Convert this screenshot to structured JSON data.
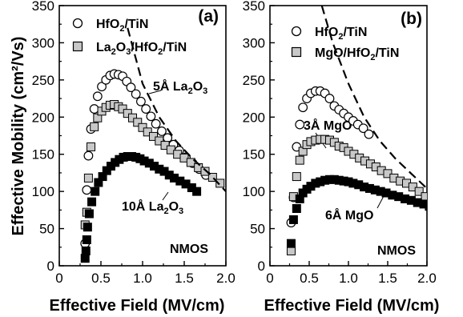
{
  "figure": {
    "ylabel": "Effective Mobility (cm²/Vs)",
    "xlabel": "Effective Field (MV/cm)"
  },
  "chart_data": [
    {
      "type": "scatter",
      "panel": "(a)",
      "xlabel": "Effective Field (MV/cm)",
      "ylabel": "Effective Mobility (cm²/Vs)",
      "xlim": [
        0,
        2.0
      ],
      "ylim": [
        0,
        350
      ],
      "xticks": [
        "0",
        "0.5",
        "1.0",
        "1.5",
        "2.0"
      ],
      "yticks": [
        "0",
        "50",
        "100",
        "150",
        "200",
        "250",
        "300",
        "350"
      ],
      "grid": false,
      "legend_position": "top-left",
      "series": [
        {
          "name": "HfO2/TiN",
          "marker": "open-circle",
          "x": [
            0.31,
            0.33,
            0.35,
            0.38,
            0.42,
            0.46,
            0.51,
            0.56,
            0.61,
            0.66,
            0.71,
            0.76,
            0.81,
            0.86,
            0.92,
            0.98,
            1.04,
            1.1,
            1.16,
            1.23,
            1.3,
            1.37,
            1.44,
            1.52,
            1.6,
            1.68,
            1.76
          ],
          "y": [
            30,
            102,
            148,
            184,
            211,
            228,
            241,
            250,
            256,
            258,
            257,
            255,
            248,
            240,
            231,
            221,
            211,
            201,
            191,
            181,
            172,
            163,
            155,
            146,
            138,
            130,
            122
          ]
        },
        {
          "name": "La2O3/HfO2/TiN",
          "marker": "filled-gray-square",
          "x": [
            0.31,
            0.33,
            0.35,
            0.38,
            0.42,
            0.46,
            0.51,
            0.56,
            0.61,
            0.66,
            0.71,
            0.76,
            0.82,
            0.88,
            0.94,
            1.0,
            1.06,
            1.13,
            1.2,
            1.27,
            1.34,
            1.42,
            1.5,
            1.58,
            1.67,
            1.75,
            1.84,
            1.93
          ],
          "y": [
            55,
            72,
            118,
            160,
            187,
            199,
            208,
            213,
            216,
            217,
            214,
            211,
            205,
            199,
            193,
            186,
            180,
            174,
            168,
            162,
            156,
            150,
            145,
            139,
            132,
            127,
            119,
            111
          ]
        },
        {
          "name": "10Å La2O3",
          "marker": "filled-black-square",
          "x": [
            0.31,
            0.32,
            0.33,
            0.34,
            0.36,
            0.39,
            0.43,
            0.47,
            0.52,
            0.57,
            0.62,
            0.67,
            0.72,
            0.77,
            0.82,
            0.87,
            0.92,
            0.97,
            1.02,
            1.08,
            1.14,
            1.2,
            1.26,
            1.32,
            1.38,
            1.45,
            1.52,
            1.59,
            1.65
          ],
          "y": [
            10,
            20,
            35,
            52,
            70,
            86,
            100,
            112,
            120,
            128,
            134,
            139,
            143,
            146,
            147,
            147,
            146,
            144,
            141,
            138,
            134,
            130,
            127,
            122,
            118,
            114,
            110,
            105,
            100
          ]
        },
        {
          "name": "universal-curve",
          "line": "dashed",
          "x": [
            0.82,
            1.0,
            1.2,
            1.4,
            1.6,
            1.8,
            2.0
          ],
          "y": [
            320,
            245,
            200,
            168,
            144,
            124,
            100
          ]
        }
      ],
      "annotations": [
        "5Å La2O3",
        "10Å La2O3",
        "NMOS"
      ]
    },
    {
      "type": "scatter",
      "panel": "(b)",
      "xlabel": "Effective Field (MV/cm)",
      "xlim": [
        0,
        2.0
      ],
      "ylim": [
        0,
        350
      ],
      "xticks": [
        "0",
        "0.5",
        "1.0",
        "1.5",
        "2.0"
      ],
      "yticks": [
        "0",
        "50",
        "100",
        "150",
        "200",
        "250",
        "300",
        "350"
      ],
      "grid": false,
      "legend_position": "top-left",
      "series": [
        {
          "name": "HfO2/TiN",
          "marker": "open-circle",
          "x": [
            0.27,
            0.3,
            0.34,
            0.38,
            0.42,
            0.47,
            0.52,
            0.58,
            0.64,
            0.7,
            0.76,
            0.82,
            0.88,
            0.94,
            1.0,
            1.06,
            1.12,
            1.19,
            1.26
          ],
          "y": [
            58,
            92,
            160,
            190,
            213,
            225,
            232,
            235,
            235,
            232,
            225,
            215,
            210,
            205,
            200,
            195,
            190,
            185,
            177
          ]
        },
        {
          "name": "MgO/HfO2/TiN",
          "marker": "filled-gray-square",
          "x": [
            0.27,
            0.3,
            0.34,
            0.38,
            0.42,
            0.47,
            0.52,
            0.58,
            0.64,
            0.7,
            0.76,
            0.82,
            0.88,
            0.94,
            1.0,
            1.07,
            1.14,
            1.21,
            1.28,
            1.35,
            1.42,
            1.5,
            1.58,
            1.66,
            1.74,
            1.82,
            1.9,
            1.98
          ],
          "y": [
            20,
            93,
            120,
            142,
            154,
            163,
            167,
            169,
            170,
            170,
            169,
            166,
            161,
            159,
            154,
            150,
            145,
            141,
            137,
            133,
            128,
            124,
            118,
            114,
            111,
            106,
            100,
            93
          ]
        },
        {
          "name": "6Å MgO",
          "marker": "filled-black-square",
          "x": [
            0.27,
            0.3,
            0.34,
            0.38,
            0.42,
            0.47,
            0.52,
            0.58,
            0.64,
            0.7,
            0.76,
            0.82,
            0.88,
            0.94,
            1.0,
            1.06,
            1.13,
            1.2,
            1.27,
            1.34,
            1.41,
            1.48,
            1.56,
            1.64,
            1.72,
            1.8,
            1.88,
            1.96,
            2.03
          ],
          "y": [
            30,
            62,
            77,
            90,
            98,
            103,
            107,
            111,
            113,
            115,
            116,
            116,
            115,
            114,
            113,
            111,
            109,
            106,
            104,
            102,
            100,
            98,
            95,
            93,
            90,
            88,
            85,
            83,
            80
          ]
        },
        {
          "name": "universal-curve",
          "line": "dashed",
          "x": [
            0.66,
            0.8,
            1.0,
            1.2,
            1.4,
            1.6,
            1.8,
            2.0
          ],
          "y": [
            350,
            300,
            245,
            200,
            168,
            144,
            124,
            104
          ]
        }
      ],
      "annotations": [
        "3Å MgO",
        "6Å MgO",
        "NMOS"
      ]
    }
  ]
}
